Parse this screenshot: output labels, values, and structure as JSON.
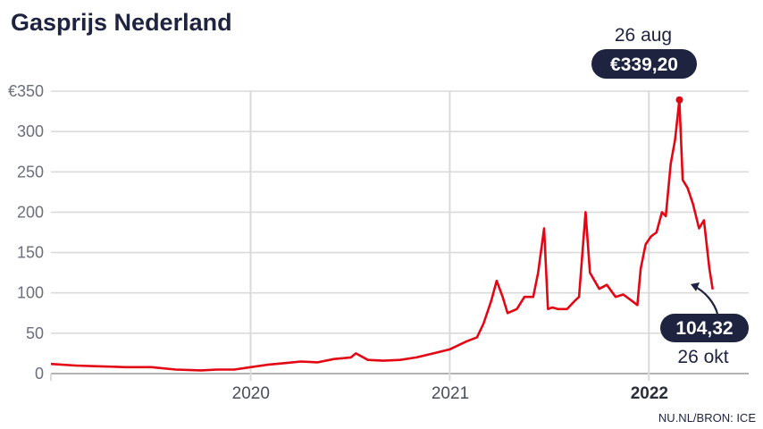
{
  "chart_data": {
    "type": "line",
    "title": "Gasprijs Nederland",
    "source": "NU.NL/BRON: ICE",
    "ylim": [
      0,
      350
    ],
    "y_ticks": [
      "0",
      "50",
      "100",
      "150",
      "200",
      "250",
      "300",
      "€350"
    ],
    "y_tick_values": [
      0,
      50,
      100,
      150,
      200,
      250,
      300,
      350
    ],
    "x_ticks": [
      "2020",
      "2021",
      "2022"
    ],
    "x_tick_bold": [
      false,
      false,
      true
    ],
    "grid": true,
    "colors": {
      "line": "#e30613",
      "pill": "#1e2340",
      "text": "#1e2340"
    },
    "series": [
      {
        "x": [
          "2019-07-01",
          "2019-08-15",
          "2019-10-01",
          "2019-11-15",
          "2020-01-01",
          "2020-02-15",
          "2020-04-01",
          "2020-05-01",
          "2020-06-01",
          "2020-07-01",
          "2020-08-01",
          "2020-09-01",
          "2020-10-01",
          "2020-11-01",
          "2020-12-01",
          "2021-01-01",
          "2021-01-10",
          "2021-02-01",
          "2021-03-01",
          "2021-04-01",
          "2021-05-01",
          "2021-06-01",
          "2021-07-01",
          "2021-08-01",
          "2021-08-20",
          "2021-09-01",
          "2021-09-15",
          "2021-09-25",
          "2021-10-06",
          "2021-10-15",
          "2021-11-01",
          "2021-11-15",
          "2021-12-01",
          "2021-12-10",
          "2021-12-21",
          "2021-12-28",
          "2022-01-05",
          "2022-01-15",
          "2022-02-01",
          "2022-02-15",
          "2022-02-23",
          "2022-03-07",
          "2022-03-15",
          "2022-04-01",
          "2022-04-15",
          "2022-05-01",
          "2022-05-15",
          "2022-05-31",
          "2022-06-10",
          "2022-06-16",
          "2022-06-25",
          "2022-07-05",
          "2022-07-15",
          "2022-07-25",
          "2022-08-01",
          "2022-08-10",
          "2022-08-18",
          "2022-08-26",
          "2022-09-01",
          "2022-09-10",
          "2022-09-20",
          "2022-10-01",
          "2022-10-10",
          "2022-10-20",
          "2022-10-26"
        ],
        "values": [
          12,
          10,
          9,
          8,
          8,
          5,
          4,
          5,
          5,
          8,
          11,
          13,
          15,
          14,
          18,
          20,
          25,
          17,
          16,
          17,
          20,
          25,
          30,
          40,
          45,
          62,
          90,
          115,
          95,
          75,
          80,
          95,
          95,
          125,
          180,
          80,
          82,
          80,
          80,
          90,
          95,
          200,
          125,
          105,
          110,
          95,
          98,
          90,
          85,
          130,
          160,
          170,
          175,
          200,
          195,
          260,
          290,
          339.2,
          240,
          230,
          210,
          180,
          190,
          130,
          104.32
        ]
      }
    ],
    "peak": {
      "date": "26 aug",
      "value": 339.2,
      "label": "€339,20"
    },
    "last": {
      "date": "26 okt",
      "value": 104.32,
      "label": "104,32"
    }
  }
}
